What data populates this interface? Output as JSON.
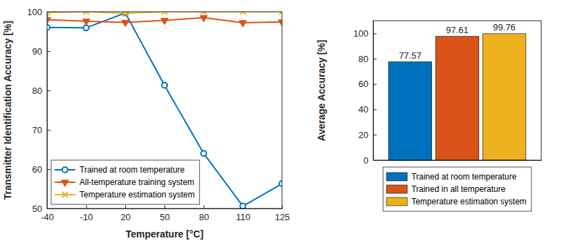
{
  "chart_data": [
    {
      "type": "line",
      "x_label": "Temperature [°C]",
      "y_label": "Transmitter Identification Accuracy [%]",
      "categories": [
        -40,
        -10,
        20,
        50,
        80,
        110,
        125
      ],
      "ylim": [
        50,
        100
      ],
      "yticks": [
        50,
        60,
        70,
        80,
        90,
        100
      ],
      "grid": false,
      "legend": "lower left",
      "series": [
        {
          "name": "Trained at room temperature",
          "color": "#0072BD",
          "marker": "circle",
          "line_style": "solid",
          "values": [
            96,
            95.9,
            99.7,
            81.3,
            64,
            50.6,
            56.3
          ]
        },
        {
          "name": "All-temperature training system",
          "color": "#D95319",
          "marker": "triangle-down",
          "line_style": "solid",
          "values": [
            98,
            97.6,
            97.3,
            97.8,
            98.5,
            97.2,
            97.4
          ]
        },
        {
          "name": "Temperature estimation system",
          "color": "#EDB120",
          "marker": "x",
          "line_style": "solid",
          "values": [
            99.8,
            100,
            99.6,
            100,
            100,
            100,
            100
          ]
        }
      ]
    },
    {
      "type": "bar",
      "y_label": "Average Accuracy [%]",
      "categories": [
        null
      ],
      "ylim": [
        0,
        110
      ],
      "yticks": [
        0,
        20,
        40,
        60,
        80,
        100
      ],
      "grid": false,
      "legend": "bottom",
      "data_labels": true,
      "series": [
        {
          "name": "Trained at room temperature",
          "color": "#0072BD",
          "values": [
            77.57
          ]
        },
        {
          "name": "Trained in all temperature",
          "color": "#D95319",
          "values": [
            97.61
          ]
        },
        {
          "name": "Temperature estimation system",
          "color": "#EDB120",
          "values": [
            99.76
          ]
        }
      ]
    }
  ]
}
